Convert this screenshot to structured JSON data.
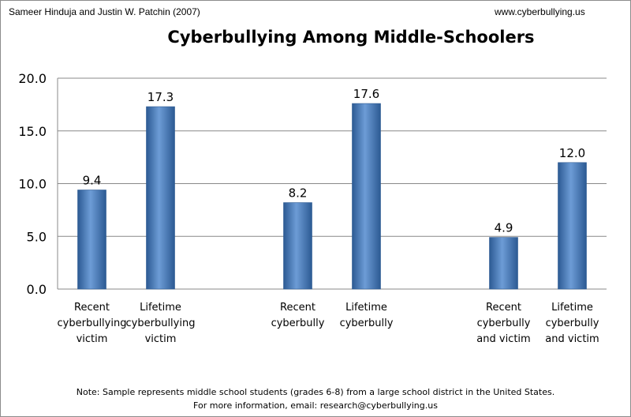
{
  "header": {
    "author": "Sameer Hinduja and Justin W. Patchin (2007)",
    "website": "www.cyberbullying.us"
  },
  "footer": {
    "note": "Note: Sample represents middle school students (grades 6-8) from a large school district in the United States.",
    "contact": "For more information, email: research@cyberbullying.us"
  },
  "chart_data": {
    "type": "bar",
    "title": "Cyberbullying Among Middle-Schoolers",
    "xlabel": "",
    "ylabel": "",
    "ylim": [
      0,
      20
    ],
    "yticks": [
      "0.0",
      "5.0",
      "10.0",
      "15.0",
      "20.0"
    ],
    "grid": true,
    "legend": "none",
    "categories": [
      [
        "Recent",
        "cyberbullying",
        "victim"
      ],
      [
        "Lifetime",
        "cyberbullying",
        "victim"
      ],
      [
        "Recent",
        "cyberbully"
      ],
      [
        "Lifetime",
        "cyberbully"
      ],
      [
        "Recent",
        "cyberbully",
        "and victim"
      ],
      [
        "Lifetime",
        "cyberbully",
        "and victim"
      ]
    ],
    "values": [
      9.4,
      17.3,
      8.2,
      17.6,
      4.9,
      12.0
    ],
    "data_labels": [
      "9.4",
      "17.3",
      "8.2",
      "17.6",
      "4.9",
      "12.0"
    ],
    "colors": {
      "bar": "#4a7ebb",
      "bar_dark": "#2c5a93",
      "bar_light": "#6d9cd6",
      "grid": "#888888"
    }
  }
}
